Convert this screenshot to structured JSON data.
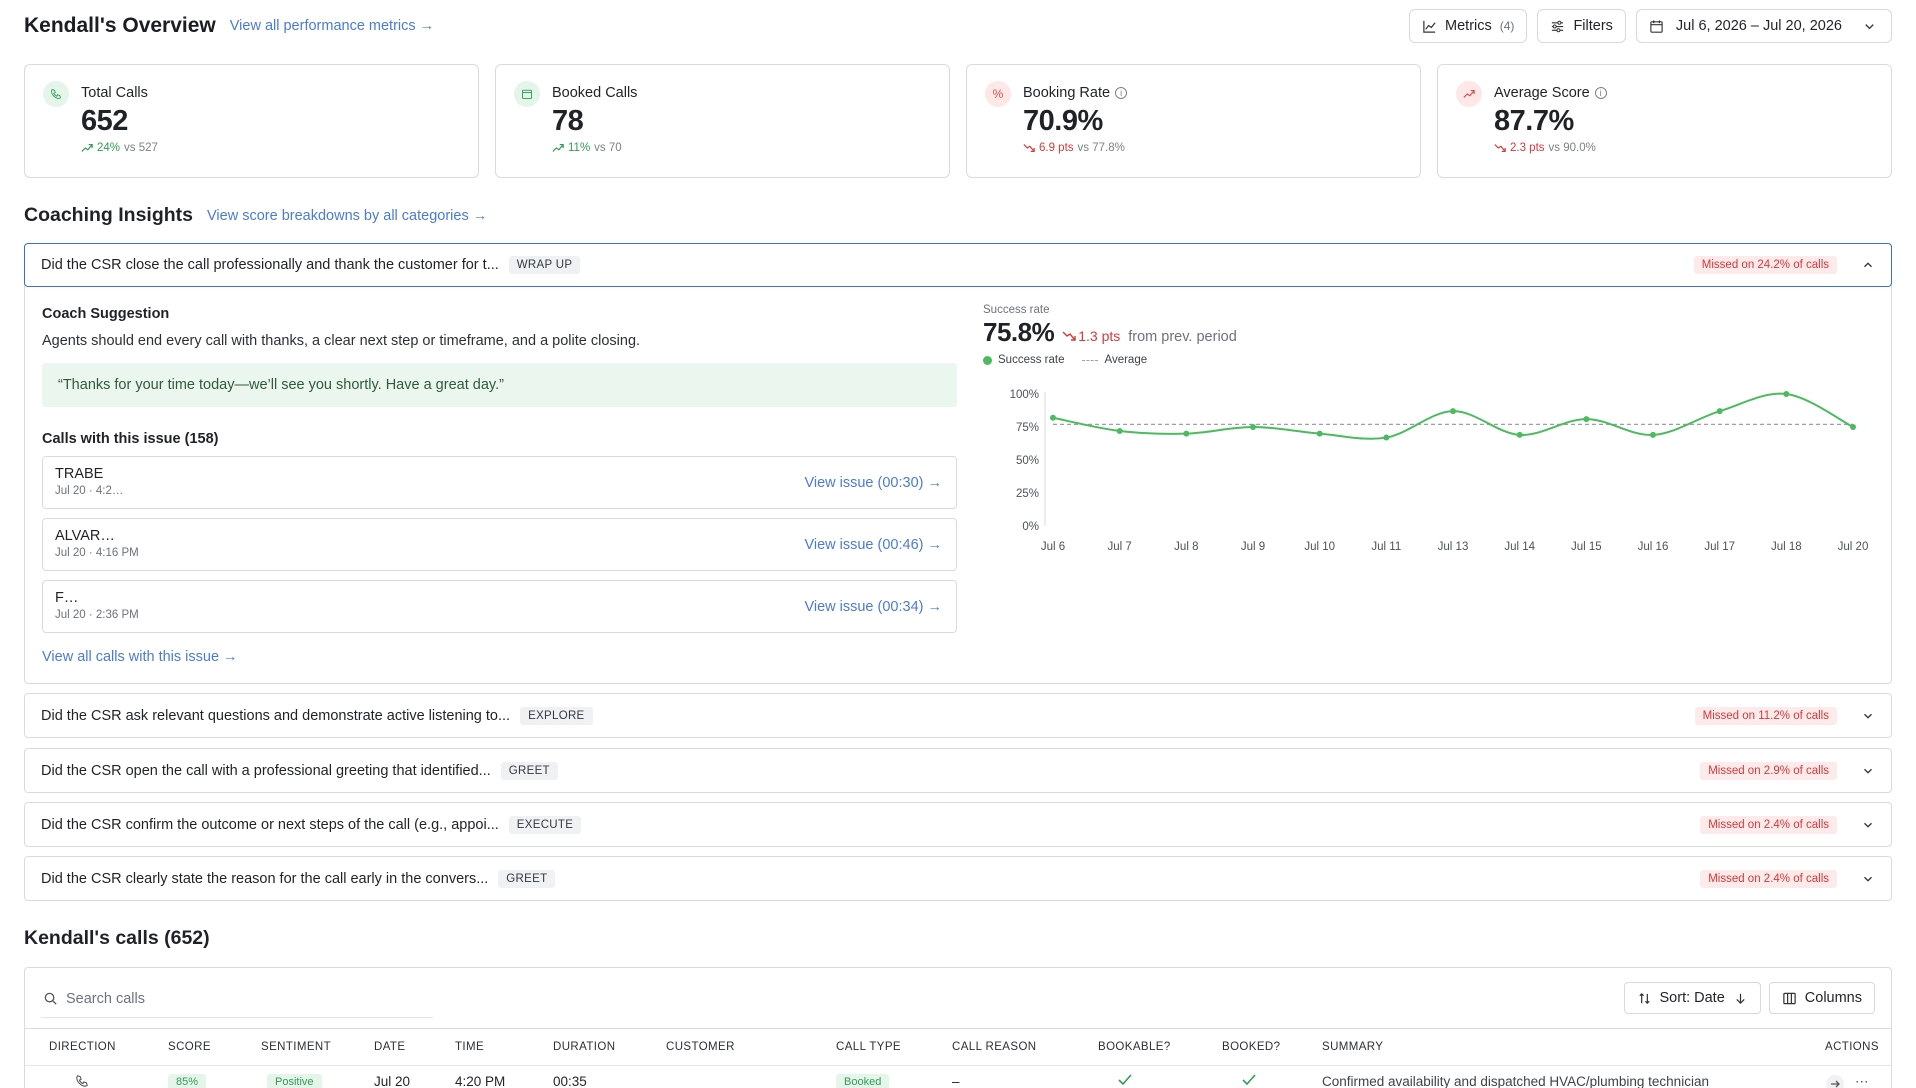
{
  "header": {
    "title": "Kendall's Overview",
    "view_all_link": "View all performance metrics →",
    "metrics_label": "Metrics",
    "metrics_count": "(4)",
    "filters_label": "Filters",
    "date_range": "Jul 6, 2026 – Jul 20, 2026"
  },
  "kpis": [
    {
      "label": "Total Calls",
      "value": "652",
      "delta": "24%",
      "vs": "vs 527",
      "trend": "up",
      "icon": "phone-icon"
    },
    {
      "label": "Booked Calls",
      "value": "78",
      "delta": "11%",
      "vs": "vs 70",
      "trend": "up",
      "icon": "calendar-icon"
    },
    {
      "label": "Booking Rate",
      "value": "70.9%",
      "delta": "6.9 pts",
      "vs": "vs 77.8%",
      "trend": "down",
      "icon": "percent-icon"
    },
    {
      "label": "Average Score",
      "value": "87.7%",
      "delta": "2.3 pts",
      "vs": "vs 90.0%",
      "trend": "down",
      "icon": "trend-icon"
    }
  ],
  "coaching": {
    "title": "Coaching Insights",
    "link": "View score breakdowns by all categories →",
    "open_item": {
      "question": "Did the CSR close the call professionally and thank the customer for t...",
      "tag": "WRAP UP",
      "missed": "Missed on 24.2% of calls",
      "suggestion_title": "Coach Suggestion",
      "suggestion_text": "Agents should end every call with thanks, a clear next step or timeframe, and a polite closing.",
      "quote": "“Thanks for your time today—we’ll see you shortly. Have a great day.”",
      "calls_title": "Calls with this issue (158)",
      "calls": [
        {
          "name": "TRABE",
          "time": "Jul 20 · 4:2…",
          "link": "View issue (00:30) →"
        },
        {
          "name": "ALVAR…",
          "time": "Jul 20 · 4:16 PM",
          "link": "View issue (00:46) →"
        },
        {
          "name": "F…",
          "time": "Jul 20 · 2:36 PM",
          "link": "View issue (00:34) →"
        }
      ],
      "view_all_calls": "View all calls with this issue →",
      "success_label": "Success rate",
      "success_value": "75.8%",
      "success_delta": "1.3 pts",
      "success_from": "from prev. period",
      "legend_success": "Success rate",
      "legend_average": "Average"
    },
    "items": [
      {
        "question": "Did the CSR ask relevant questions and demonstrate active listening to...",
        "tag": "EXPLORE",
        "missed": "Missed on 11.2% of calls"
      },
      {
        "question": "Did the CSR open the call with a professional greeting that identified...",
        "tag": "GREET",
        "missed": "Missed on 2.9% of calls"
      },
      {
        "question": "Did the CSR confirm the outcome or next steps of the call (e.g., appoi...",
        "tag": "EXECUTE",
        "missed": "Missed on 2.4% of calls"
      },
      {
        "question": "Did the CSR clearly state the reason for the call early in the convers...",
        "tag": "GREET",
        "missed": "Missed on 2.4% of calls"
      }
    ]
  },
  "chart_data": {
    "type": "line",
    "x": [
      "Jul 6",
      "Jul 7",
      "Jul 8",
      "Jul 9",
      "Jul 10",
      "Jul 11",
      "Jul 13",
      "Jul 14",
      "Jul 15",
      "Jul 16",
      "Jul 17",
      "Jul 18",
      "Jul 20"
    ],
    "series": [
      {
        "name": "Success rate",
        "values": [
          82,
          72,
          70,
          75,
          70,
          67,
          87,
          69,
          81,
          69,
          87,
          100,
          75
        ],
        "color": "#4cba5e"
      },
      {
        "name": "Average",
        "values": [
          77,
          77,
          77,
          77,
          77,
          77,
          77,
          77,
          77,
          77,
          77,
          77,
          77
        ],
        "color": "#9aa0a6",
        "style": "dashed"
      }
    ],
    "y_ticks": [
      "100%",
      "75%",
      "50%",
      "25%",
      "0%"
    ],
    "ylim": [
      0,
      100
    ],
    "grid": false,
    "legend": "top-left"
  },
  "calls_section": {
    "title": "Kendall's calls (652)",
    "search_placeholder": "Search calls",
    "sort_label": "Sort: Date",
    "columns_label": "Columns",
    "columns": [
      "DIRECTION",
      "SCORE",
      "SENTIMENT",
      "DATE",
      "TIME",
      "DURATION",
      "CUSTOMER",
      "CALL TYPE",
      "CALL REASON",
      "BOOKABLE?",
      "BOOKED?",
      "SUMMARY",
      "ACTIONS"
    ],
    "rows": [
      {
        "score": "85%",
        "sentiment": "Positive",
        "date": "Jul 20",
        "time": "4:20 PM",
        "duration": "00:35",
        "customer": "",
        "call_type": "Booked",
        "call_reason": "–",
        "summary": "Confirmed availability and dispatched HVAC/plumbing technician"
      }
    ]
  }
}
